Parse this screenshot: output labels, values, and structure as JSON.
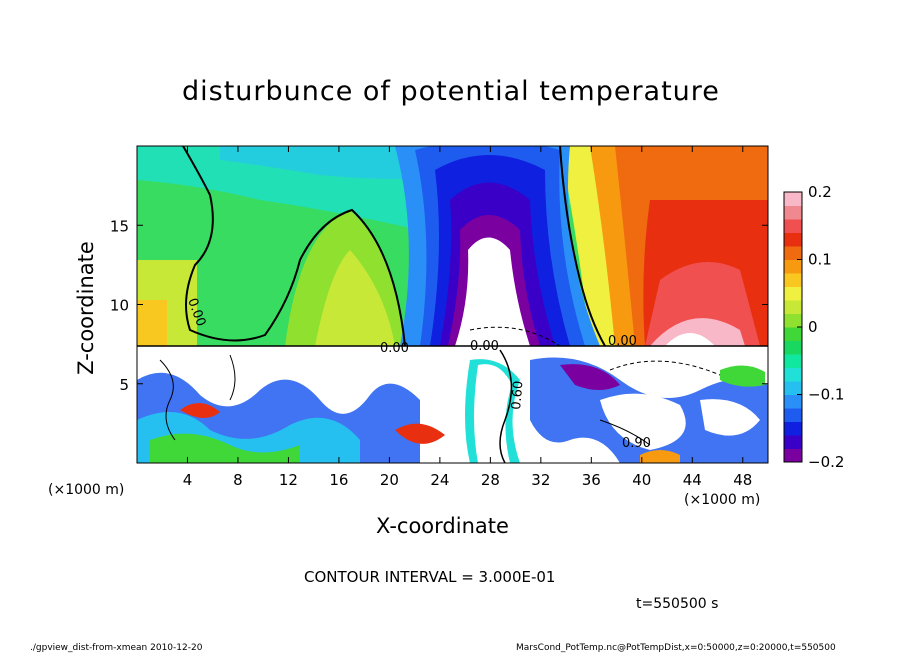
{
  "chart_data": {
    "type": "heatmap",
    "title": "disturbunce of potential temperature",
    "xlabel": "X-coordinate",
    "ylabel": "Z-coordinate",
    "x_unit_left": "(×1000 m)",
    "x_unit_right": "(×1000 m)",
    "xlim": [
      0,
      50
    ],
    "ylim": [
      0,
      20
    ],
    "x_ticks": [
      4,
      8,
      12,
      16,
      20,
      24,
      28,
      32,
      36,
      40,
      44,
      48
    ],
    "y_ticks": [
      5,
      10,
      15
    ],
    "colorbar": {
      "range": [
        -0.2,
        0.2
      ],
      "ticks": [
        "0.2",
        "0.1",
        "0",
        "−0.1",
        "−0.2"
      ],
      "tick_values": [
        0.2,
        0.1,
        0,
        -0.1,
        -0.2
      ],
      "colors": [
        "#7b00a0",
        "#3a00c8",
        "#1020e0",
        "#1e5cf0",
        "#2a90f8",
        "#26c0f0",
        "#20e0d8",
        "#10e8a0",
        "#18d860",
        "#40d838",
        "#90e030",
        "#c8e838",
        "#f0f040",
        "#f8c820",
        "#f89a10",
        "#f06a10",
        "#e83010",
        "#f05050",
        "#f08890",
        "#f8b8c8"
      ]
    },
    "contour_labels": [
      "0.00",
      "0.00",
      "0.00",
      "0.00",
      "0.60",
      "0.90"
    ],
    "contour_interval_text": "CONTOUR INTERVAL = 3.000E-01",
    "time_text": "t=550500 s"
  },
  "footer": {
    "left": "./gpview_dist-from-xmean  2010-12-20",
    "right": "MarsCond_PotTemp.nc@PotTempDist,x=0:50000,z=0:20000,t=550500"
  }
}
